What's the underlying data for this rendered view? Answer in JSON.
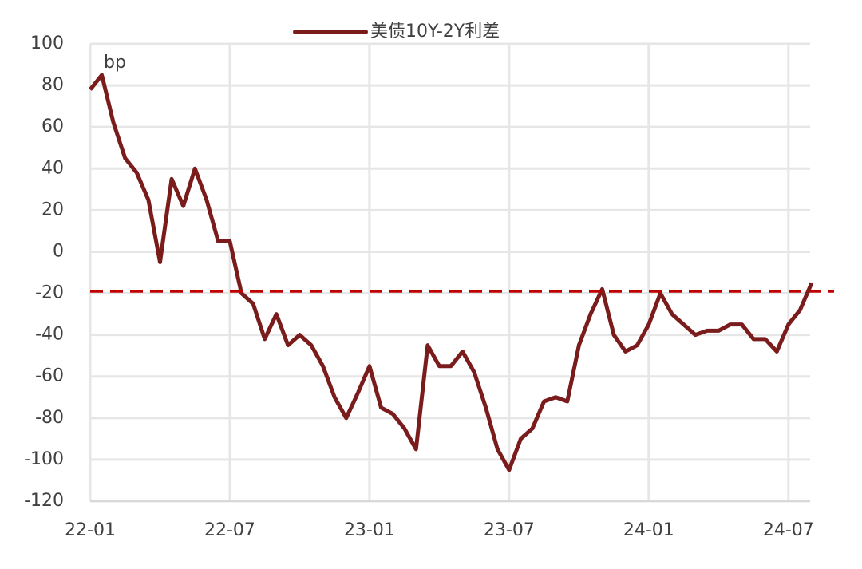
{
  "chart_data": {
    "type": "line",
    "series": [
      {
        "name": "美债10Y-2Y利差",
        "color": "#7b1c1c",
        "values": [
          78,
          85,
          62,
          45,
          38,
          25,
          -5,
          35,
          22,
          40,
          25,
          5,
          5,
          -20,
          -25,
          -42,
          -30,
          -45,
          -40,
          -45,
          -55,
          -70,
          -80,
          -68,
          -55,
          -75,
          -78,
          -85,
          -95,
          -45,
          -55,
          -55,
          -48,
          -58,
          -75,
          -95,
          -105,
          -90,
          -85,
          -72,
          -70,
          -72,
          -45,
          -30,
          -18,
          -40,
          -48,
          -45,
          -35,
          -20,
          -30,
          -35,
          -40,
          -38,
          -38,
          -35,
          -35,
          -42,
          -42,
          -48,
          -35,
          -28,
          -15
        ]
      }
    ],
    "categories": [
      "22-01",
      null,
      null,
      null,
      null,
      null,
      null,
      null,
      null,
      null,
      null,
      null,
      "22-07",
      null,
      null,
      null,
      null,
      null,
      null,
      null,
      null,
      null,
      null,
      null,
      "23-01",
      null,
      null,
      null,
      null,
      null,
      null,
      null,
      null,
      null,
      null,
      null,
      "23-07",
      null,
      null,
      null,
      null,
      null,
      null,
      null,
      null,
      null,
      null,
      null,
      "24-01",
      null,
      null,
      null,
      null,
      null,
      null,
      null,
      null,
      null,
      null,
      null,
      "24-07",
      null,
      null
    ],
    "ylim": [
      -120,
      100
    ],
    "yticks": [
      -120,
      -100,
      -80,
      -60,
      -40,
      -20,
      0,
      20,
      40,
      60,
      80,
      100
    ],
    "y_unit_annotation": "bp",
    "reference_line": {
      "value": -19,
      "color": "#c00000"
    },
    "grid": true
  }
}
